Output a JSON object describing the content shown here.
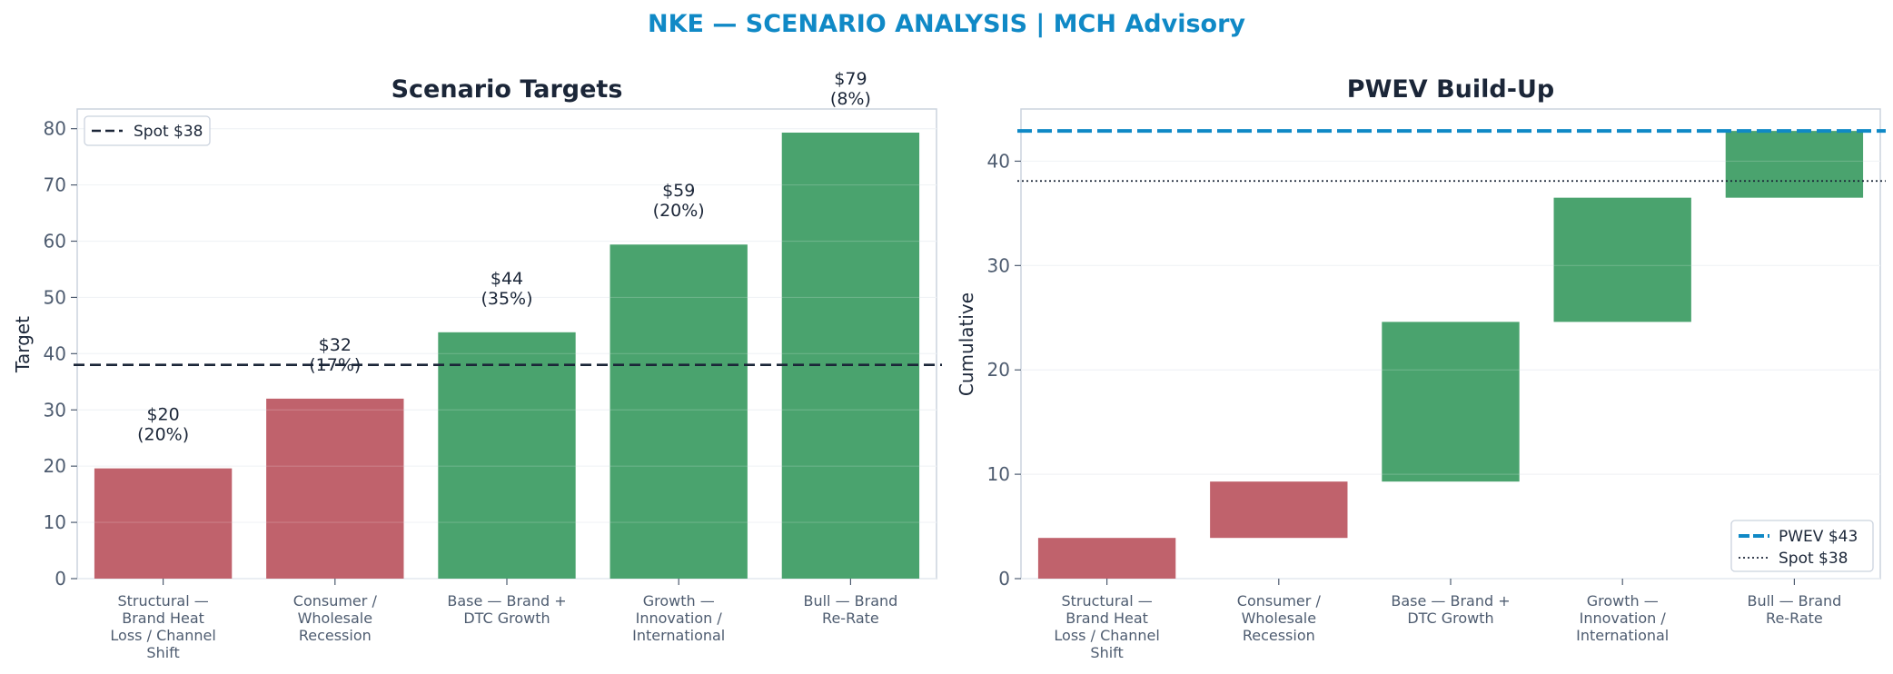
{
  "figure_title": "NKE — SCENARIO ANALYSIS | MCH Advisory",
  "colors": {
    "title": "#1089C6",
    "down": "#C0626C",
    "up": "#4AA36E",
    "spot": "#1B2638",
    "pwev": "#1089C6",
    "axis_text": "#4E5C70",
    "heading": "#1B2638",
    "frame": "#CBD3DE",
    "grid": "#EEF1F5"
  },
  "chart_data": [
    {
      "type": "bar",
      "title": "Scenario Targets",
      "xlabel": "",
      "ylabel": "Target",
      "categories": [
        [
          "Structural —",
          "Brand Heat",
          "Loss / Channel",
          "Shift"
        ],
        [
          "Consumer /",
          "Wholesale",
          "Recession"
        ],
        [
          "Base — Brand +",
          "DTC Growth"
        ],
        [
          "Growth —",
          "Innovation /",
          "International"
        ],
        [
          "Bull — Brand",
          "Re-Rate"
        ]
      ],
      "values": [
        19.6,
        32.0,
        43.8,
        59.4,
        79.3
      ],
      "bar_labels": [
        [
          "$20",
          "(20%)"
        ],
        [
          "$32",
          "(17%)"
        ],
        [
          "$44",
          "(35%)"
        ],
        [
          "$59",
          "(20%)"
        ],
        [
          "$79",
          "(8%)"
        ]
      ],
      "bar_color_keys": [
        "down",
        "down",
        "up",
        "up",
        "up"
      ],
      "ylim": [
        0,
        83.5
      ],
      "yticks": [
        0,
        10,
        20,
        30,
        40,
        50,
        60,
        70,
        80
      ],
      "grid": true,
      "reference_line": {
        "value": 38.0,
        "label": "Spot $38"
      },
      "legend": {
        "position": "top-left",
        "entries": [
          "Spot $38"
        ]
      }
    },
    {
      "type": "waterfall",
      "title": "PWEV Build-Up",
      "xlabel": "",
      "ylabel": "Cumulative",
      "categories": [
        [
          "Structural —",
          "Brand Heat",
          "Loss / Channel",
          "Shift"
        ],
        [
          "Consumer /",
          "Wholesale",
          "Recession"
        ],
        [
          "Base — Brand +",
          "DTC Growth"
        ],
        [
          "Growth —",
          "Innovation /",
          "International"
        ],
        [
          "Bull — Brand",
          "Re-Rate"
        ]
      ],
      "steps": [
        {
          "start": 0.0,
          "end": 3.9
        },
        {
          "start": 3.9,
          "end": 9.3
        },
        {
          "start": 9.3,
          "end": 24.6
        },
        {
          "start": 24.6,
          "end": 36.5
        },
        {
          "start": 36.5,
          "end": 42.9
        }
      ],
      "bar_color_keys": [
        "down",
        "down",
        "up",
        "up",
        "up"
      ],
      "ylim": [
        0,
        45.0
      ],
      "yticks": [
        0,
        10,
        20,
        30,
        40
      ],
      "grid": true,
      "pwev_line": {
        "value": 42.9,
        "label": "PWEV $43"
      },
      "spot_line": {
        "value": 38.1,
        "label": "Spot $38"
      },
      "legend": {
        "position": "bottom-right",
        "entries": [
          "PWEV $43",
          "Spot $38"
        ]
      }
    }
  ]
}
